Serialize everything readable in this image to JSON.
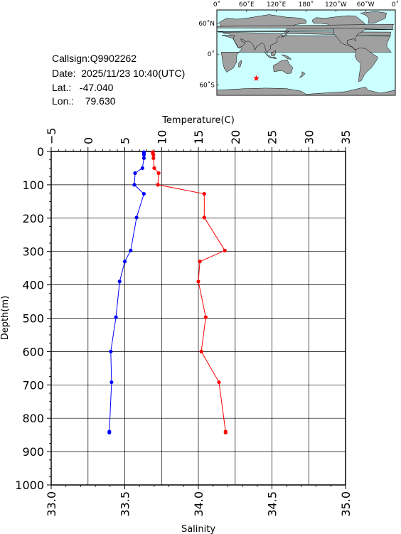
{
  "station": {
    "callsign": "Callsign:Q9902262",
    "date": "Date:  2025/11/23 10:40(UTC)",
    "lat": "Lat.:   -47.040",
    "lon": "Lon.:    79.630"
  },
  "map": {
    "lon_labels": [
      "0˚",
      "60˚E",
      "120˚E",
      "180˚",
      "120˚W",
      "60˚W",
      "0˚"
    ],
    "lat_labels": [
      "60˚N",
      "0˚",
      "60˚S"
    ],
    "station_marker": {
      "lon": 79.63,
      "lat": -47.04,
      "color": "#ff0000"
    },
    "ocean_color": "#ccffff",
    "land_color": "#a0a0a0"
  },
  "chart_data": {
    "type": "line",
    "y_axis": {
      "label": "Depth(m)",
      "range": [
        0,
        1000
      ],
      "inverted": true,
      "ticks": [
        "0",
        "100",
        "200",
        "300",
        "400",
        "500",
        "600",
        "700",
        "800",
        "900",
        "1000"
      ]
    },
    "x_axis_top": {
      "label": "Temperature(C)",
      "range": [
        -5,
        35
      ],
      "ticks": [
        "−5",
        "0",
        "5",
        "10",
        "15",
        "20",
        "25",
        "30",
        "35"
      ]
    },
    "x_axis_bottom": {
      "label": "Salinity",
      "range": [
        33.0,
        35.0
      ],
      "ticks": [
        "33.0",
        "33.5",
        "34.0",
        "34.5",
        "35.0"
      ]
    },
    "grid": true,
    "series": [
      {
        "quantity": "temperature",
        "color": "#ff0000",
        "axis": "top",
        "points": [
          {
            "depth": 2,
            "value": 8.8
          },
          {
            "depth": 5,
            "value": 8.8
          },
          {
            "depth": 10,
            "value": 8.9
          },
          {
            "depth": 20,
            "value": 8.9
          },
          {
            "depth": 50,
            "value": 9.0
          },
          {
            "depth": 65,
            "value": 9.6
          },
          {
            "depth": 100,
            "value": 9.5
          },
          {
            "depth": 127,
            "value": 15.8
          },
          {
            "depth": 198,
            "value": 15.8
          },
          {
            "depth": 297,
            "value": 18.6
          },
          {
            "depth": 330,
            "value": 15.2
          },
          {
            "depth": 390,
            "value": 15.0
          },
          {
            "depth": 497,
            "value": 16.0
          },
          {
            "depth": 600,
            "value": 15.4
          },
          {
            "depth": 692,
            "value": 17.8
          },
          {
            "depth": 840,
            "value": 18.7
          },
          {
            "depth": 843,
            "value": 18.7
          }
        ]
      },
      {
        "quantity": "salinity",
        "color": "#0000ff",
        "axis": "bottom",
        "points": [
          {
            "depth": 2,
            "value": 33.63
          },
          {
            "depth": 5,
            "value": 33.63
          },
          {
            "depth": 10,
            "value": 33.63
          },
          {
            "depth": 20,
            "value": 33.63
          },
          {
            "depth": 50,
            "value": 33.62
          },
          {
            "depth": 65,
            "value": 33.57
          },
          {
            "depth": 100,
            "value": 33.565
          },
          {
            "depth": 127,
            "value": 33.63
          },
          {
            "depth": 198,
            "value": 33.58
          },
          {
            "depth": 297,
            "value": 33.54
          },
          {
            "depth": 330,
            "value": 33.5
          },
          {
            "depth": 390,
            "value": 33.465
          },
          {
            "depth": 497,
            "value": 33.44
          },
          {
            "depth": 600,
            "value": 33.405
          },
          {
            "depth": 692,
            "value": 33.41
          },
          {
            "depth": 840,
            "value": 33.395
          },
          {
            "depth": 843,
            "value": 33.395
          }
        ]
      }
    ]
  }
}
